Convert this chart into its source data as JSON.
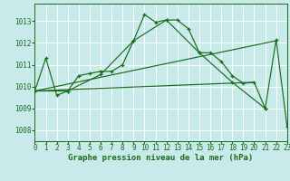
{
  "background_color": "#c8eaea",
  "grid_color": "#ffffff",
  "line_color": "#1a6b1a",
  "series": [
    {
      "x": [
        0,
        1,
        2,
        3,
        4,
        5,
        6,
        7,
        8,
        9,
        10,
        11,
        12,
        13,
        14,
        15,
        16,
        17,
        18,
        19,
        20,
        21,
        22,
        23
      ],
      "y": [
        1009.8,
        1011.3,
        1009.6,
        1009.8,
        1010.5,
        1010.6,
        1010.7,
        1010.7,
        1011.0,
        1012.1,
        1013.3,
        1012.95,
        1013.05,
        1013.05,
        1012.65,
        1011.55,
        1011.55,
        1011.15,
        1010.5,
        1010.15,
        1010.2,
        1009.0,
        1012.15,
        1008.15
      ],
      "has_markers": true
    },
    {
      "x": [
        0,
        3,
        6,
        9,
        12,
        15,
        18,
        21
      ],
      "y": [
        1009.8,
        1009.8,
        1010.55,
        1012.1,
        1013.05,
        1011.55,
        1010.2,
        1009.0
      ],
      "has_markers": true
    },
    {
      "x": [
        0,
        21,
        22
      ],
      "y": [
        1009.8,
        1012.1,
        1012.1
      ],
      "has_markers": false
    },
    {
      "x": [
        0,
        20,
        21
      ],
      "y": [
        1009.8,
        1010.2,
        1010.2
      ],
      "has_markers": false
    }
  ],
  "yticks": [
    1008,
    1009,
    1010,
    1011,
    1012,
    1013
  ],
  "ytick_labels": [
    "1008",
    "1009",
    "1010",
    "1011",
    "1012",
    "1013"
  ],
  "xticks": [
    0,
    1,
    2,
    3,
    4,
    5,
    6,
    7,
    8,
    9,
    10,
    11,
    12,
    13,
    14,
    15,
    16,
    17,
    18,
    19,
    20,
    21,
    22,
    23
  ],
  "ylim": [
    1007.5,
    1013.8
  ],
  "xlim": [
    0,
    23
  ],
  "xlabel": "Graphe pression niveau de la mer (hPa)",
  "xlabel_fontsize": 6.5,
  "xlabel_color": "#1a6b1a",
  "tick_fontsize": 5.5,
  "tick_color": "#1a6b1a",
  "marker": "+",
  "marker_size": 3.5,
  "linewidth": 0.85
}
